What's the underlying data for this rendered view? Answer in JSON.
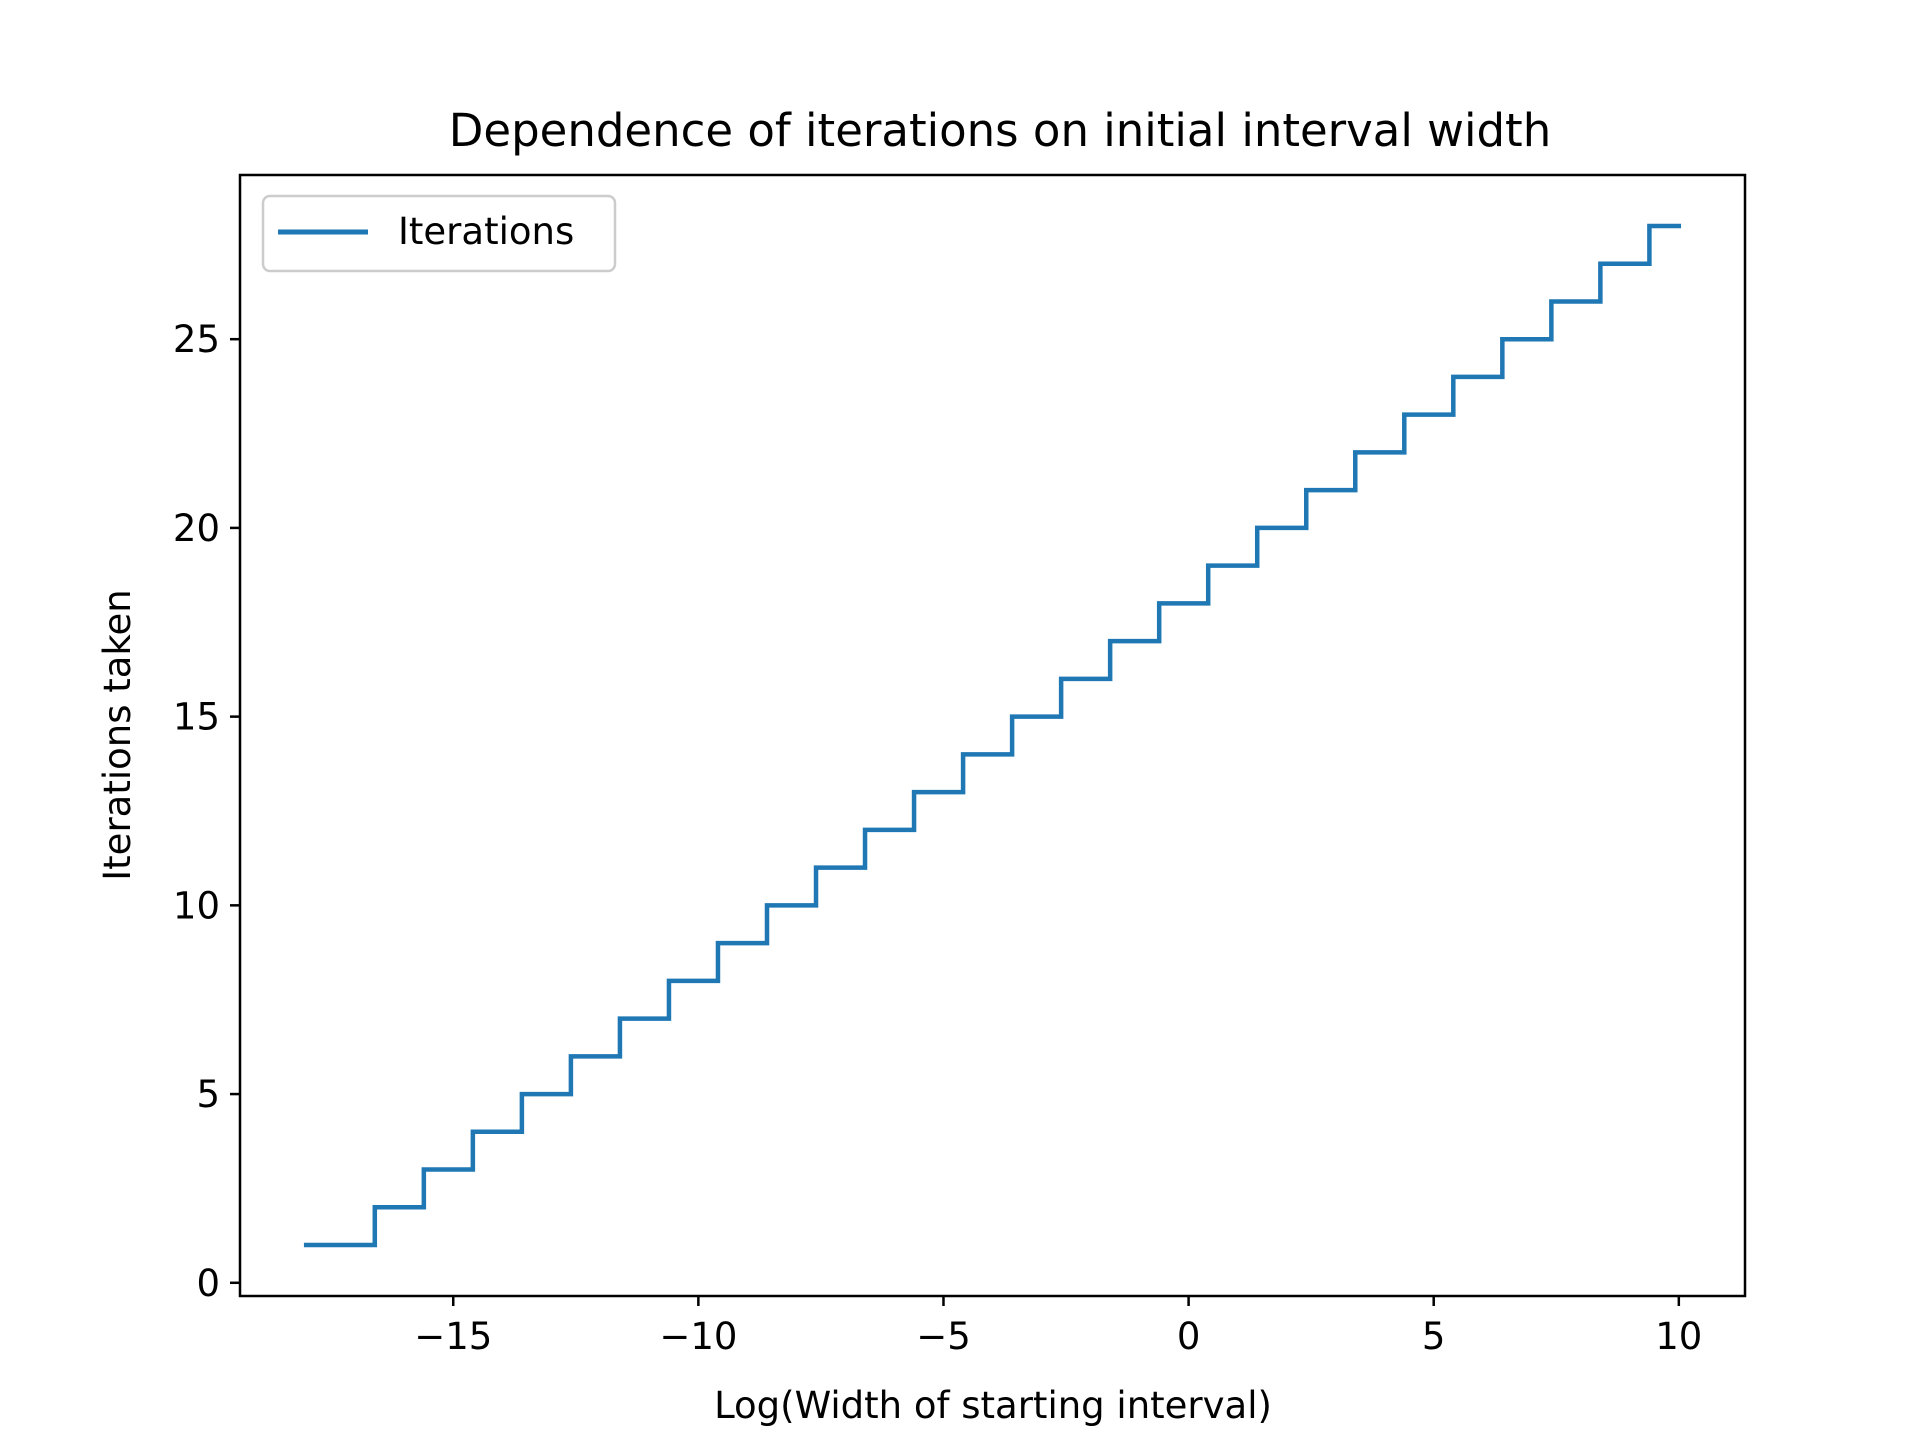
{
  "chart_data": {
    "type": "line",
    "title": "Dependence of iterations on initial interval width",
    "xlabel": "Log(Width of starting interval)",
    "ylabel": "Iterations taken",
    "xlim": [
      -19.35,
      11.35
    ],
    "ylim": [
      -0.35,
      29.35
    ],
    "xticks": [
      -15,
      -10,
      -5,
      0,
      5,
      10
    ],
    "xtick_labels": [
      "−15",
      "−10",
      "−5",
      "0",
      "5",
      "10"
    ],
    "yticks": [
      0,
      5,
      10,
      15,
      20,
      25
    ],
    "ytick_labels": [
      "0",
      "5",
      "10",
      "15",
      "20",
      "25"
    ],
    "grid": false,
    "legend_position": "upper left",
    "step_where": "post",
    "series": [
      {
        "name": "Iterations",
        "color": "#1f77b4",
        "x": [
          -18.0,
          -16.6,
          -15.6,
          -14.6,
          -13.6,
          -12.6,
          -11.6,
          -10.6,
          -9.6,
          -8.6,
          -7.6,
          -6.6,
          -5.6,
          -4.6,
          -3.6,
          -2.6,
          -1.6,
          -0.6,
          0.4,
          1.4,
          2.4,
          3.4,
          4.4,
          5.4,
          6.4,
          7.4,
          8.4,
          9.4,
          10.0
        ],
        "y": [
          1,
          2,
          3,
          4,
          5,
          6,
          7,
          8,
          9,
          10,
          11,
          12,
          13,
          14,
          15,
          16,
          17,
          18,
          19,
          20,
          21,
          22,
          23,
          24,
          25,
          26,
          27,
          28,
          28
        ]
      }
    ]
  }
}
